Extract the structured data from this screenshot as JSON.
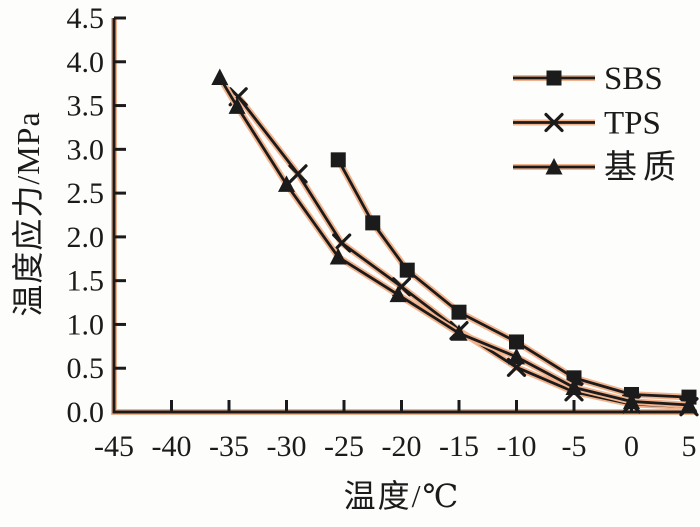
{
  "figure": {
    "background": "#fdfdfb",
    "ink_color": "#1b1b1b",
    "halo_color": "#f2b28c"
  },
  "chart_data": {
    "type": "line",
    "title": "",
    "xlabel": "温度/℃",
    "ylabel": "温度应力/MPa",
    "xlim": [
      -45,
      5
    ],
    "ylim": [
      0,
      4.5
    ],
    "grid": false,
    "legend_position": "upper right",
    "x_ticks": [
      -45,
      -40,
      -35,
      -30,
      -25,
      -20,
      -15,
      -10,
      -5,
      0,
      5
    ],
    "x_tick_labels": [
      "-45",
      "-40",
      "-35",
      "-30",
      "-25",
      "-20",
      "-15",
      "-10",
      "-5",
      "0",
      "5"
    ],
    "y_ticks": [
      0,
      0.5,
      1,
      1.5,
      2,
      2.5,
      3,
      3.5,
      4,
      4.5
    ],
    "y_tick_labels": [
      "0.0",
      "0.5",
      "1.0",
      "1.5",
      "2.0",
      "2.5",
      "3.0",
      "3.5",
      "4.0",
      "4.5"
    ],
    "series": [
      {
        "name": "SBS",
        "marker": "square",
        "points": [
          [
            -25.5,
            2.88
          ],
          [
            -22.5,
            2.16
          ],
          [
            -19.5,
            1.62
          ],
          [
            -15,
            1.14
          ],
          [
            -10,
            0.8
          ],
          [
            -5,
            0.39
          ],
          [
            0,
            0.2
          ],
          [
            5,
            0.17
          ]
        ]
      },
      {
        "name": "TPS",
        "marker": "x",
        "points": [
          [
            -34.2,
            3.6
          ],
          [
            -29,
            2.72
          ],
          [
            -25.2,
            1.93
          ],
          [
            -20,
            1.43
          ],
          [
            -15,
            0.93
          ],
          [
            -10,
            0.51
          ],
          [
            -5,
            0.23
          ],
          [
            0,
            0.09
          ],
          [
            5,
            0.06
          ]
        ]
      },
      {
        "name": "基质",
        "marker": "triangle",
        "points": [
          [
            -35.8,
            3.82
          ],
          [
            -34.3,
            3.49
          ],
          [
            -30,
            2.6
          ],
          [
            -25.5,
            1.77
          ],
          [
            -20.3,
            1.34
          ],
          [
            -15,
            0.9
          ],
          [
            -10,
            0.63
          ],
          [
            -5,
            0.28
          ],
          [
            0,
            0.12
          ],
          [
            5,
            0.08
          ]
        ]
      }
    ]
  }
}
